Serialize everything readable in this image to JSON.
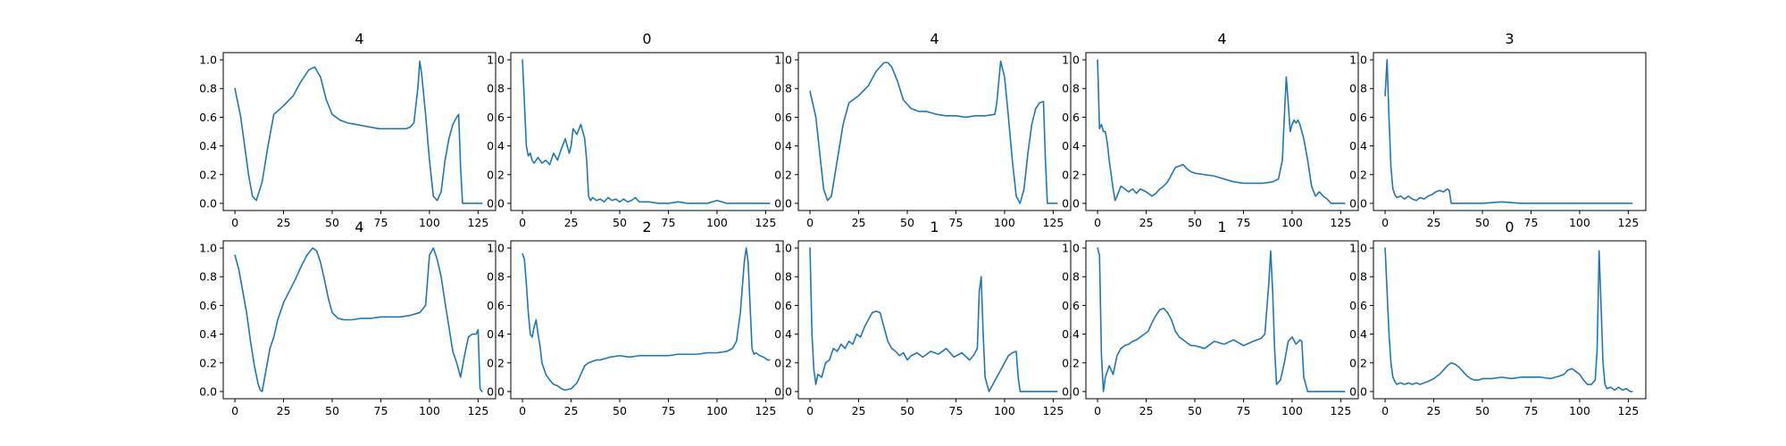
{
  "figure": {
    "line_color": "#1f77b4"
  },
  "chart_data": [
    {
      "type": "line",
      "title": "4",
      "xlim": [
        -6,
        134
      ],
      "ylim": [
        -0.05,
        1.05
      ],
      "xticks": [
        0,
        25,
        50,
        75,
        100,
        125
      ],
      "yticks": [
        0.0,
        0.2,
        0.4,
        0.6,
        0.8,
        1.0
      ],
      "xtick_labels": [
        "0",
        "25",
        "50",
        "75",
        "100",
        "125"
      ],
      "ytick_labels": [
        "0.0",
        "0.2",
        "0.4",
        "0.6",
        "0.8",
        "1.0"
      ],
      "x": [
        0,
        3,
        5,
        7,
        9,
        11,
        14,
        17,
        20,
        25,
        30,
        34,
        38,
        41,
        44,
        47,
        50,
        54,
        58,
        62,
        66,
        70,
        74,
        78,
        82,
        86,
        88,
        90,
        92,
        94,
        95,
        96,
        98,
        100,
        102,
        104,
        106,
        108,
        110,
        112,
        114,
        115,
        116,
        117,
        118,
        120,
        122,
        124,
        126,
        127
      ],
      "y": [
        0.8,
        0.6,
        0.4,
        0.2,
        0.05,
        0.02,
        0.15,
        0.4,
        0.62,
        0.68,
        0.75,
        0.85,
        0.93,
        0.95,
        0.88,
        0.72,
        0.62,
        0.58,
        0.56,
        0.55,
        0.54,
        0.53,
        0.52,
        0.52,
        0.52,
        0.52,
        0.52,
        0.53,
        0.56,
        0.8,
        0.99,
        0.9,
        0.62,
        0.3,
        0.05,
        0.02,
        0.08,
        0.3,
        0.45,
        0.55,
        0.6,
        0.62,
        0.25,
        0.0,
        0.0,
        0.0,
        0.0,
        0.0,
        0.0,
        0.0
      ]
    },
    {
      "type": "line",
      "title": "0",
      "xlim": [
        -6,
        134
      ],
      "ylim": [
        -0.05,
        1.05
      ],
      "xticks": [
        0,
        25,
        50,
        75,
        100,
        125
      ],
      "yticks": [
        0.0,
        0.2,
        0.4,
        0.6,
        0.8,
        1.0
      ],
      "xtick_labels": [
        "0",
        "25",
        "50",
        "75",
        "100",
        "125"
      ],
      "ytick_labels": [
        "0.0",
        "0.2",
        "0.4",
        "0.6",
        "0.8",
        "1.0"
      ],
      "x": [
        0,
        1,
        2,
        3,
        4,
        5,
        6,
        8,
        10,
        12,
        14,
        16,
        18,
        20,
        22,
        24,
        25,
        26,
        28,
        30,
        32,
        33,
        34,
        35,
        36,
        38,
        40,
        42,
        44,
        46,
        48,
        50,
        52,
        54,
        56,
        58,
        60,
        65,
        70,
        75,
        80,
        85,
        90,
        95,
        100,
        105,
        110,
        115,
        120,
        125,
        127
      ],
      "y": [
        1.0,
        0.7,
        0.4,
        0.33,
        0.35,
        0.3,
        0.28,
        0.32,
        0.28,
        0.3,
        0.27,
        0.35,
        0.3,
        0.38,
        0.45,
        0.35,
        0.4,
        0.52,
        0.48,
        0.55,
        0.45,
        0.3,
        0.05,
        0.02,
        0.04,
        0.02,
        0.03,
        0.01,
        0.04,
        0.02,
        0.03,
        0.01,
        0.03,
        0.01,
        0.02,
        0.04,
        0.01,
        0.01,
        0.0,
        0.0,
        0.01,
        0.0,
        0.0,
        0.0,
        0.02,
        0.0,
        0.0,
        0.0,
        0.0,
        0.0,
        0.0
      ]
    },
    {
      "type": "line",
      "title": "4",
      "xlim": [
        -6,
        134
      ],
      "ylim": [
        -0.05,
        1.05
      ],
      "xticks": [
        0,
        25,
        50,
        75,
        100,
        125
      ],
      "yticks": [
        0.0,
        0.2,
        0.4,
        0.6,
        0.8,
        1.0
      ],
      "xtick_labels": [
        "0",
        "25",
        "50",
        "75",
        "100",
        "125"
      ],
      "ytick_labels": [
        "0.0",
        "0.2",
        "0.4",
        "0.6",
        "0.8",
        "1.0"
      ],
      "x": [
        0,
        3,
        5,
        7,
        9,
        11,
        14,
        17,
        20,
        25,
        30,
        34,
        38,
        40,
        42,
        45,
        48,
        52,
        56,
        60,
        65,
        70,
        75,
        80,
        85,
        90,
        95,
        96,
        98,
        100,
        102,
        104,
        106,
        108,
        110,
        112,
        114,
        116,
        118,
        120,
        121,
        122,
        124,
        126,
        127
      ],
      "y": [
        0.78,
        0.6,
        0.35,
        0.1,
        0.02,
        0.05,
        0.3,
        0.55,
        0.7,
        0.75,
        0.82,
        0.92,
        0.98,
        0.98,
        0.95,
        0.85,
        0.72,
        0.66,
        0.64,
        0.64,
        0.62,
        0.61,
        0.61,
        0.6,
        0.61,
        0.61,
        0.62,
        0.7,
        0.99,
        0.88,
        0.6,
        0.3,
        0.05,
        0.0,
        0.1,
        0.35,
        0.55,
        0.66,
        0.7,
        0.71,
        0.3,
        0.0,
        0.0,
        0.0,
        0.0
      ]
    },
    {
      "type": "line",
      "title": "4",
      "xlim": [
        -6,
        134
      ],
      "ylim": [
        -0.05,
        1.05
      ],
      "xticks": [
        0,
        25,
        50,
        75,
        100,
        125
      ],
      "yticks": [
        0.0,
        0.2,
        0.4,
        0.6,
        0.8,
        1.0
      ],
      "xtick_labels": [
        "0",
        "25",
        "50",
        "75",
        "100",
        "125"
      ],
      "ytick_labels": [
        "0.0",
        "0.2",
        "0.4",
        "0.6",
        "0.8",
        "1.0"
      ],
      "x": [
        0,
        1,
        2,
        3,
        4,
        5,
        6,
        7,
        8,
        9,
        10,
        12,
        14,
        16,
        18,
        20,
        22,
        25,
        28,
        30,
        32,
        34,
        36,
        38,
        40,
        42,
        44,
        46,
        48,
        50,
        55,
        60,
        65,
        70,
        75,
        80,
        85,
        90,
        93,
        95,
        96,
        97,
        98,
        99,
        100,
        101,
        102,
        103,
        104,
        105,
        106,
        108,
        110,
        112,
        114,
        116,
        118,
        120,
        122,
        124,
        126,
        127
      ],
      "y": [
        1.0,
        0.52,
        0.55,
        0.5,
        0.5,
        0.42,
        0.3,
        0.2,
        0.1,
        0.02,
        0.05,
        0.12,
        0.1,
        0.08,
        0.1,
        0.07,
        0.1,
        0.08,
        0.05,
        0.07,
        0.1,
        0.12,
        0.15,
        0.2,
        0.25,
        0.26,
        0.27,
        0.24,
        0.22,
        0.21,
        0.2,
        0.19,
        0.17,
        0.15,
        0.14,
        0.14,
        0.14,
        0.15,
        0.17,
        0.3,
        0.6,
        0.88,
        0.7,
        0.5,
        0.55,
        0.58,
        0.56,
        0.58,
        0.55,
        0.5,
        0.45,
        0.3,
        0.12,
        0.05,
        0.08,
        0.05,
        0.03,
        0.0,
        0.0,
        0.0,
        0.0,
        0.0
      ]
    },
    {
      "type": "line",
      "title": "3",
      "xlim": [
        -6,
        134
      ],
      "ylim": [
        -0.05,
        1.05
      ],
      "xticks": [
        0,
        25,
        50,
        75,
        100,
        125
      ],
      "yticks": [
        0.0,
        0.2,
        0.4,
        0.6,
        0.8,
        1.0
      ],
      "xtick_labels": [
        "0",
        "25",
        "50",
        "75",
        "100",
        "125"
      ],
      "ytick_labels": [
        "0.0",
        "0.2",
        "0.4",
        "0.6",
        "0.8",
        "1.0"
      ],
      "x": [
        0,
        1,
        2,
        3,
        4,
        5,
        6,
        8,
        10,
        12,
        14,
        16,
        18,
        20,
        22,
        24,
        26,
        28,
        30,
        32,
        33,
        34,
        36,
        40,
        50,
        60,
        70,
        80,
        90,
        100,
        110,
        120,
        127
      ],
      "y": [
        0.75,
        1.0,
        0.6,
        0.25,
        0.1,
        0.06,
        0.04,
        0.05,
        0.03,
        0.05,
        0.03,
        0.02,
        0.04,
        0.03,
        0.05,
        0.06,
        0.08,
        0.09,
        0.08,
        0.1,
        0.09,
        0.0,
        0.0,
        0.0,
        0.0,
        0.01,
        0.0,
        0.0,
        0.0,
        0.0,
        0.0,
        0.0,
        0.0
      ]
    },
    {
      "type": "line",
      "title": "4",
      "xlim": [
        -6,
        134
      ],
      "ylim": [
        -0.05,
        1.05
      ],
      "xticks": [
        0,
        25,
        50,
        75,
        100,
        125
      ],
      "yticks": [
        0.0,
        0.2,
        0.4,
        0.6,
        0.8,
        1.0
      ],
      "xtick_labels": [
        "0",
        "25",
        "50",
        "75",
        "100",
        "125"
      ],
      "ytick_labels": [
        "0.0",
        "0.2",
        "0.4",
        "0.6",
        "0.8",
        "1.0"
      ],
      "x": [
        0,
        2,
        4,
        6,
        8,
        10,
        12,
        13,
        14,
        16,
        18,
        20,
        22,
        25,
        28,
        31,
        34,
        37,
        40,
        42,
        44,
        46,
        48,
        50,
        53,
        56,
        60,
        65,
        70,
        75,
        80,
        85,
        90,
        95,
        98,
        100,
        102,
        104,
        106,
        108,
        110,
        112,
        114,
        116,
        118,
        120,
        122,
        124,
        125,
        126,
        127
      ],
      "y": [
        0.95,
        0.85,
        0.7,
        0.55,
        0.35,
        0.18,
        0.05,
        0.01,
        0.0,
        0.15,
        0.3,
        0.38,
        0.5,
        0.62,
        0.7,
        0.78,
        0.87,
        0.95,
        1.0,
        0.98,
        0.9,
        0.78,
        0.65,
        0.55,
        0.51,
        0.5,
        0.5,
        0.51,
        0.51,
        0.52,
        0.52,
        0.52,
        0.53,
        0.55,
        0.6,
        0.95,
        1.0,
        0.92,
        0.8,
        0.62,
        0.45,
        0.28,
        0.2,
        0.1,
        0.25,
        0.38,
        0.4,
        0.4,
        0.43,
        0.02,
        0.0
      ]
    },
    {
      "type": "line",
      "title": "2",
      "xlim": [
        -6,
        134
      ],
      "ylim": [
        -0.05,
        1.05
      ],
      "xticks": [
        0,
        25,
        50,
        75,
        100,
        125
      ],
      "yticks": [
        0.0,
        0.2,
        0.4,
        0.6,
        0.8,
        1.0
      ],
      "xtick_labels": [
        "0",
        "25",
        "50",
        "75",
        "100",
        "125"
      ],
      "ytick_labels": [
        "0.0",
        "0.2",
        "0.4",
        "0.6",
        "0.8",
        "1.0"
      ],
      "x": [
        0,
        1,
        2,
        3,
        4,
        5,
        6,
        7,
        8,
        9,
        10,
        12,
        14,
        16,
        18,
        20,
        22,
        25,
        28,
        30,
        32,
        34,
        36,
        38,
        40,
        45,
        50,
        55,
        60,
        65,
        70,
        75,
        80,
        85,
        90,
        95,
        100,
        105,
        108,
        110,
        112,
        114,
        115,
        116,
        117,
        118,
        119,
        120,
        122,
        124,
        126,
        127
      ],
      "y": [
        0.96,
        0.92,
        0.75,
        0.55,
        0.4,
        0.38,
        0.45,
        0.5,
        0.4,
        0.32,
        0.2,
        0.12,
        0.08,
        0.05,
        0.04,
        0.02,
        0.01,
        0.02,
        0.06,
        0.12,
        0.18,
        0.2,
        0.21,
        0.22,
        0.22,
        0.24,
        0.25,
        0.24,
        0.25,
        0.25,
        0.25,
        0.25,
        0.26,
        0.26,
        0.26,
        0.27,
        0.27,
        0.28,
        0.3,
        0.35,
        0.55,
        0.9,
        1.0,
        0.9,
        0.6,
        0.3,
        0.26,
        0.27,
        0.25,
        0.24,
        0.22,
        0.22
      ]
    },
    {
      "type": "line",
      "title": "1",
      "xlim": [
        -6,
        134
      ],
      "ylim": [
        -0.05,
        1.05
      ],
      "xticks": [
        0,
        25,
        50,
        75,
        100,
        125
      ],
      "yticks": [
        0.0,
        0.2,
        0.4,
        0.6,
        0.8,
        1.0
      ],
      "xtick_labels": [
        "0",
        "25",
        "50",
        "75",
        "100",
        "125"
      ],
      "ytick_labels": [
        "0.0",
        "0.2",
        "0.4",
        "0.6",
        "0.8",
        "1.0"
      ],
      "x": [
        0,
        1,
        2,
        3,
        4,
        6,
        8,
        10,
        12,
        14,
        16,
        18,
        20,
        22,
        24,
        26,
        28,
        30,
        32,
        34,
        36,
        38,
        40,
        42,
        44,
        46,
        48,
        50,
        52,
        55,
        58,
        62,
        66,
        70,
        74,
        78,
        82,
        84,
        86,
        87,
        88,
        89,
        90,
        91,
        92,
        94,
        96,
        98,
        100,
        102,
        104,
        106,
        107,
        108,
        110,
        115,
        120,
        125,
        127
      ],
      "y": [
        1.0,
        0.4,
        0.15,
        0.05,
        0.12,
        0.1,
        0.2,
        0.22,
        0.3,
        0.28,
        0.33,
        0.3,
        0.35,
        0.33,
        0.4,
        0.38,
        0.45,
        0.5,
        0.55,
        0.56,
        0.55,
        0.45,
        0.35,
        0.3,
        0.28,
        0.25,
        0.27,
        0.22,
        0.25,
        0.27,
        0.24,
        0.28,
        0.26,
        0.3,
        0.24,
        0.27,
        0.22,
        0.25,
        0.3,
        0.7,
        0.8,
        0.4,
        0.1,
        0.05,
        0.0,
        0.05,
        0.1,
        0.15,
        0.2,
        0.25,
        0.27,
        0.28,
        0.1,
        0.0,
        0.0,
        0.0,
        0.0,
        0.0,
        0.0
      ]
    },
    {
      "type": "line",
      "title": "1",
      "xlim": [
        -6,
        134
      ],
      "ylim": [
        -0.05,
        1.05
      ],
      "xticks": [
        0,
        25,
        50,
        75,
        100,
        125
      ],
      "yticks": [
        0.0,
        0.2,
        0.4,
        0.6,
        0.8,
        1.0
      ],
      "xtick_labels": [
        "0",
        "25",
        "50",
        "75",
        "100",
        "125"
      ],
      "ytick_labels": [
        "0.0",
        "0.2",
        "0.4",
        "0.6",
        "0.8",
        "1.0"
      ],
      "x": [
        0,
        1,
        2,
        3,
        4,
        6,
        8,
        10,
        12,
        14,
        16,
        18,
        20,
        22,
        24,
        26,
        28,
        30,
        32,
        34,
        36,
        38,
        40,
        42,
        44,
        46,
        48,
        50,
        55,
        60,
        65,
        70,
        75,
        80,
        84,
        86,
        88,
        89,
        90,
        91,
        92,
        94,
        96,
        98,
        100,
        102,
        104,
        105,
        106,
        108,
        110,
        115,
        120,
        125,
        127
      ],
      "y": [
        1.0,
        0.95,
        0.25,
        0.0,
        0.1,
        0.18,
        0.12,
        0.25,
        0.3,
        0.32,
        0.33,
        0.35,
        0.36,
        0.38,
        0.4,
        0.42,
        0.48,
        0.53,
        0.57,
        0.58,
        0.55,
        0.5,
        0.42,
        0.38,
        0.36,
        0.34,
        0.32,
        0.32,
        0.3,
        0.35,
        0.33,
        0.36,
        0.32,
        0.35,
        0.37,
        0.4,
        0.75,
        0.98,
        0.7,
        0.3,
        0.05,
        0.08,
        0.2,
        0.35,
        0.38,
        0.33,
        0.36,
        0.35,
        0.1,
        0.0,
        0.0,
        0.0,
        0.0,
        0.0,
        0.0
      ]
    },
    {
      "type": "line",
      "title": "0",
      "xlim": [
        -6,
        134
      ],
      "ylim": [
        -0.05,
        1.05
      ],
      "xticks": [
        0,
        25,
        50,
        75,
        100,
        125
      ],
      "yticks": [
        0.0,
        0.2,
        0.4,
        0.6,
        0.8,
        1.0
      ],
      "xtick_labels": [
        "0",
        "25",
        "50",
        "75",
        "100",
        "125"
      ],
      "ytick_labels": [
        "0.0",
        "0.2",
        "0.4",
        "0.6",
        "0.8",
        "1.0"
      ],
      "x": [
        0,
        1,
        2,
        3,
        4,
        5,
        6,
        8,
        10,
        12,
        14,
        16,
        18,
        20,
        22,
        25,
        28,
        30,
        32,
        34,
        36,
        38,
        40,
        42,
        44,
        46,
        48,
        50,
        55,
        60,
        65,
        70,
        75,
        80,
        85,
        90,
        92,
        94,
        96,
        98,
        100,
        102,
        104,
        106,
        108,
        109,
        110,
        111,
        112,
        113,
        114,
        116,
        118,
        120,
        122,
        124,
        126,
        127
      ],
      "y": [
        1.0,
        0.7,
        0.4,
        0.2,
        0.1,
        0.07,
        0.05,
        0.06,
        0.05,
        0.06,
        0.05,
        0.06,
        0.05,
        0.06,
        0.07,
        0.09,
        0.12,
        0.15,
        0.18,
        0.2,
        0.19,
        0.17,
        0.14,
        0.11,
        0.09,
        0.08,
        0.08,
        0.09,
        0.09,
        0.1,
        0.09,
        0.1,
        0.1,
        0.1,
        0.09,
        0.11,
        0.12,
        0.15,
        0.16,
        0.14,
        0.12,
        0.08,
        0.05,
        0.05,
        0.08,
        0.3,
        0.98,
        0.6,
        0.2,
        0.05,
        0.02,
        0.03,
        0.01,
        0.03,
        0.01,
        0.02,
        0.0,
        0.0
      ]
    }
  ]
}
